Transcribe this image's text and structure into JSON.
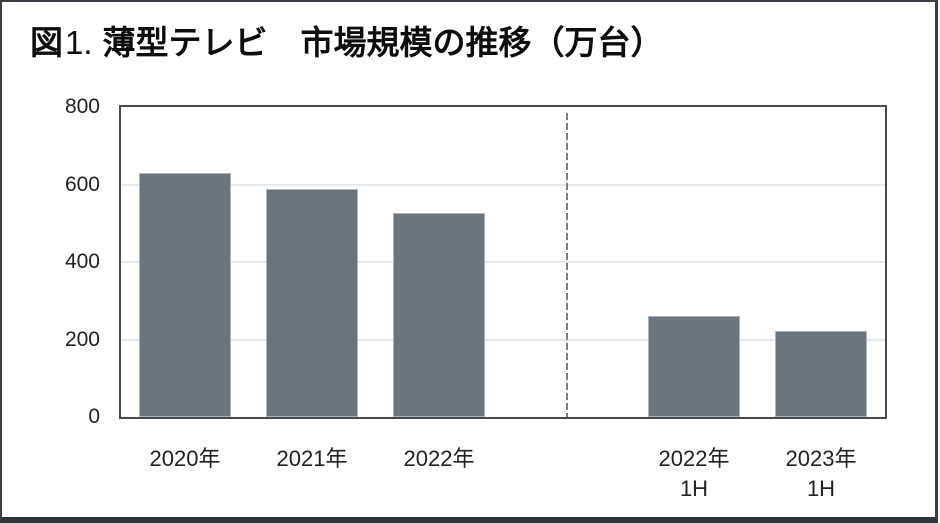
{
  "title": {
    "figure_label": "図",
    "figure_number": "1.",
    "main": "薄型テレビ　市場規模の推移（万台）"
  },
  "chart_data": {
    "type": "bar",
    "title": "図1. 薄型テレビ　市場規模の推移（万台）",
    "unit": "万台",
    "xlabel": "",
    "ylabel": "",
    "ylim": [
      0,
      800
    ],
    "y_ticks": [
      0,
      200,
      400,
      600,
      800
    ],
    "grid": true,
    "legend": null,
    "slots": 6,
    "divider_slot": 3,
    "bars": [
      {
        "label_lines": [
          "2020年"
        ],
        "value": 630,
        "slot": 0
      },
      {
        "label_lines": [
          "2021年"
        ],
        "value": 589,
        "slot": 1
      },
      {
        "label_lines": [
          "2022年"
        ],
        "value": 527,
        "slot": 2
      },
      {
        "label_lines": [
          "2022年",
          "1H"
        ],
        "value": 260,
        "slot": 4
      },
      {
        "label_lines": [
          "2023年",
          "1H"
        ],
        "value": 222,
        "slot": 5
      }
    ],
    "bar_color": "#6b757e",
    "divider_color": "#7b8085"
  }
}
